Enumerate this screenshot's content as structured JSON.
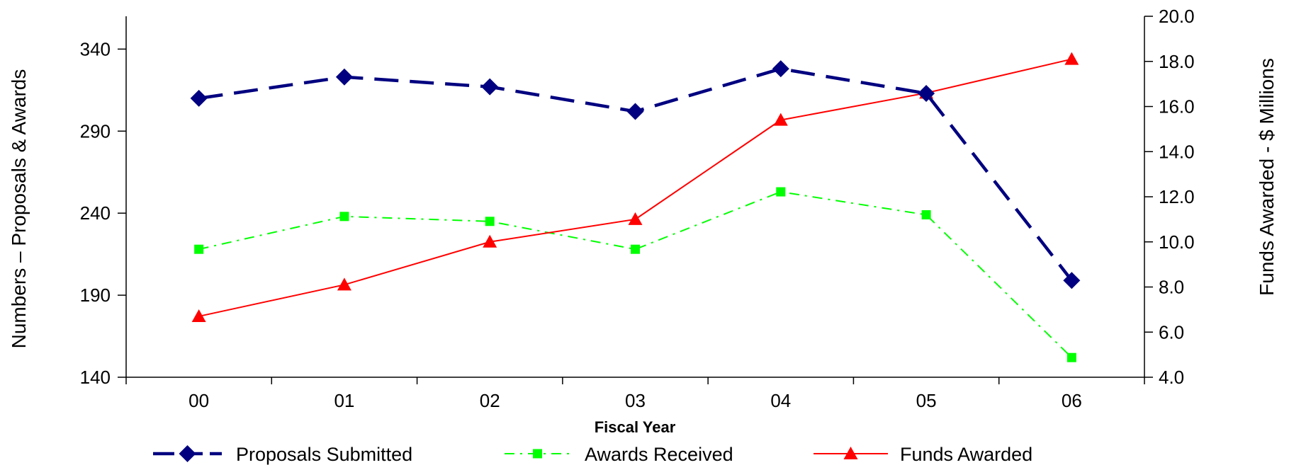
{
  "chart_data": {
    "type": "line",
    "title": "",
    "categories": [
      "00",
      "01",
      "02",
      "03",
      "04",
      "05",
      "06"
    ],
    "xlabel": "Fiscal Year",
    "ylabel_left": "Numbers – Proposals & Awards",
    "ylabel_right": "Funds Awarded - $ Millions",
    "ylim_left": [
      140,
      360
    ],
    "ylim_right": [
      4.0,
      20.0
    ],
    "yticks_left": [
      "140",
      "190",
      "240",
      "290",
      "340"
    ],
    "yticks_right": [
      "4.0",
      "6.0",
      "8.0",
      "10.0",
      "12.0",
      "14.0",
      "16.0",
      "18.0",
      "20.0"
    ],
    "grid": false,
    "legend_position": "bottom",
    "series": [
      {
        "name": "Proposals Submitted",
        "axis": "left",
        "values": [
          310,
          323,
          317,
          302,
          328,
          313,
          199
        ],
        "color": "#000080",
        "marker": "diamond",
        "dash": "long-dash"
      },
      {
        "name": "Awards Received",
        "axis": "left",
        "values": [
          218,
          238,
          235,
          218,
          253,
          239,
          152
        ],
        "color": "#00FF00",
        "marker": "square",
        "dash": "dash-dot"
      },
      {
        "name": "Funds Awarded",
        "axis": "right",
        "values": [
          6.7,
          8.1,
          10.0,
          11.0,
          15.4,
          16.6,
          18.1
        ],
        "color": "#FF0000",
        "marker": "triangle",
        "dash": "solid"
      }
    ]
  }
}
